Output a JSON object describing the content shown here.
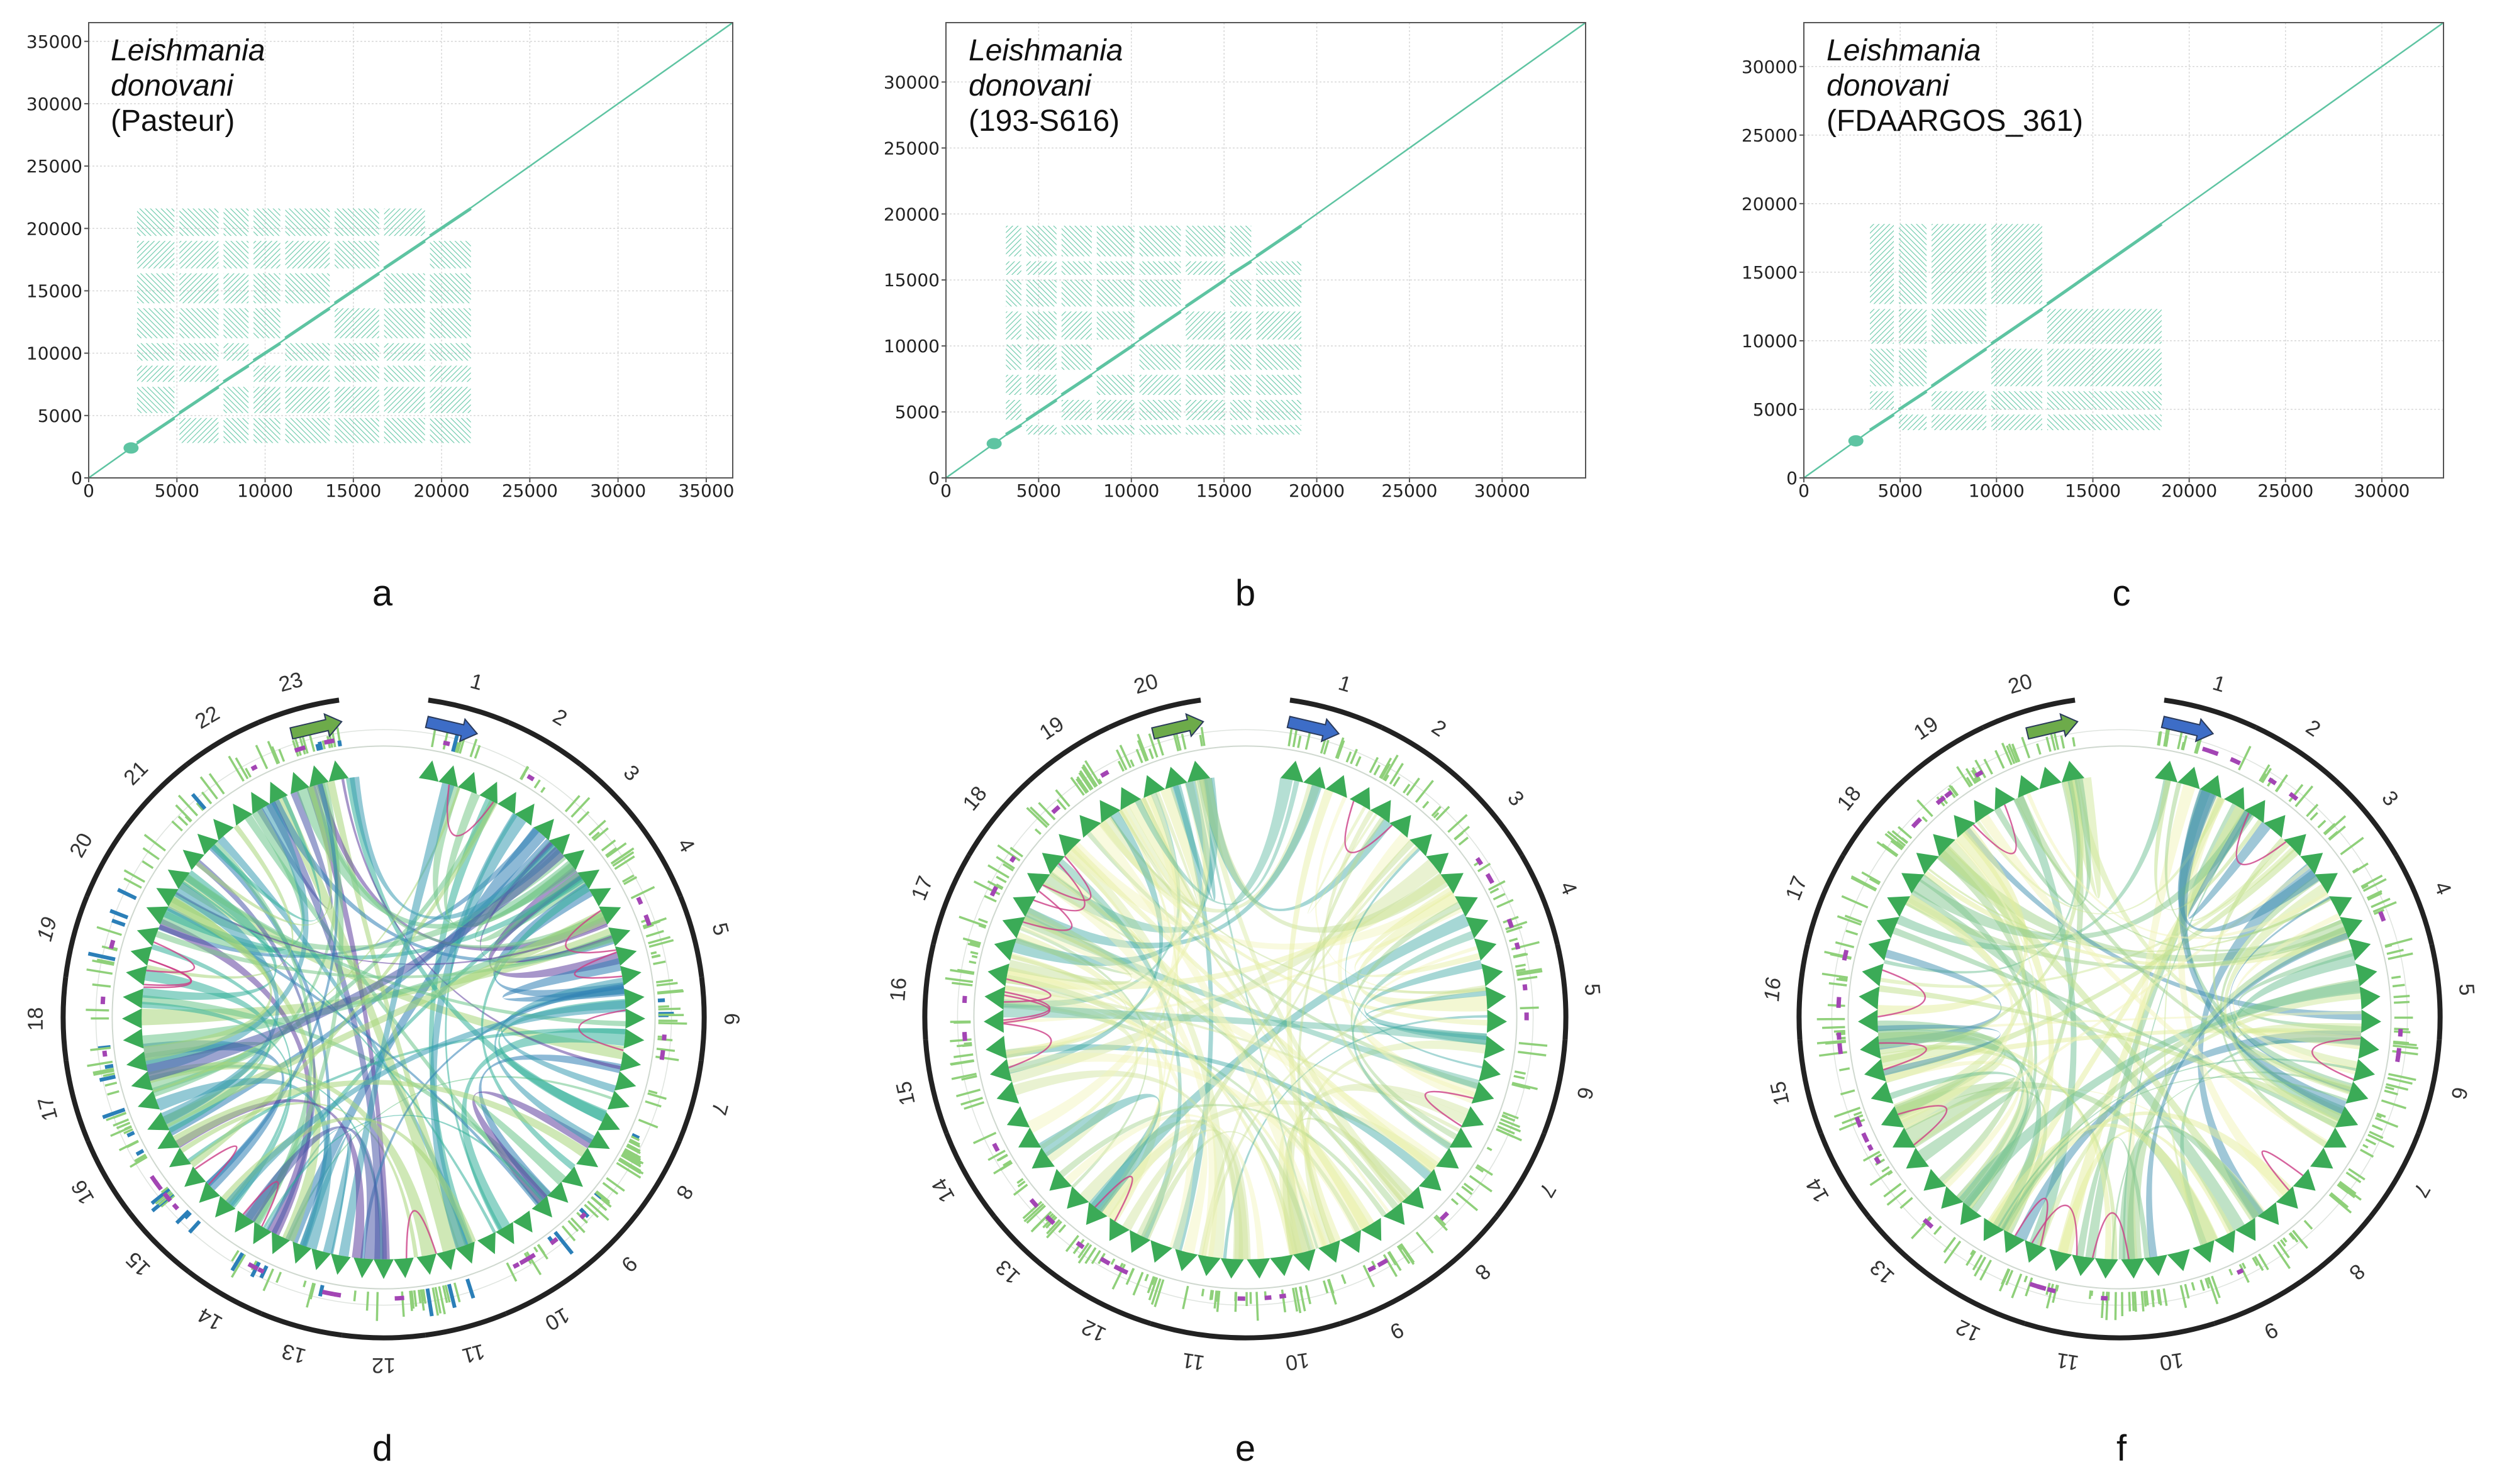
{
  "figure": {
    "panel_labels": [
      "a",
      "b",
      "c",
      "d",
      "e",
      "f"
    ]
  },
  "colors": {
    "dot": "#5ec4a2",
    "grid": "#d8d8d8",
    "axis": "#555555",
    "ring_dark": "#222222",
    "ideogram_green": "#3bab57",
    "bar_green": "#8fd07a",
    "bar_blue": "#2b7fb8",
    "purple": "#a345b4",
    "pink": "#cc3d86",
    "arrow_blue": "#3d6dc7",
    "arrow_green": "#6dab4a"
  },
  "chart_data": [
    {
      "type": "scatter",
      "panel": "a",
      "species_name": "Leishmania",
      "species_name2": "donovani",
      "strain": "(Pasteur)",
      "xlim": [
        0,
        36500
      ],
      "ylim": [
        0,
        36500
      ],
      "xticks": [
        0,
        5000,
        10000,
        15000,
        20000,
        25000,
        30000,
        35000
      ],
      "yticks": [
        0,
        5000,
        10000,
        15000,
        20000,
        25000,
        30000,
        35000
      ],
      "xtick_labels": [
        "0",
        "5000",
        "10000",
        "15000",
        "20000",
        "25000",
        "30000",
        "35000"
      ],
      "ytick_labels": [
        "0",
        "5000",
        "10000",
        "15000",
        "20000",
        "25000",
        "30000",
        "35000"
      ],
      "diagonal": [
        [
          0,
          0
        ],
        [
          36500,
          36500
        ]
      ],
      "block_region": {
        "x": [
          2600,
          21800
        ],
        "y": [
          2600,
          21800
        ]
      },
      "block_breaks": [
        2600,
        5000,
        7500,
        9200,
        11000,
        13800,
        16600,
        19200,
        21800
      ],
      "highlight": {
        "x": 2400,
        "y": 2400
      }
    },
    {
      "type": "scatter",
      "panel": "b",
      "species_name": "Leishmania",
      "species_name2": "donovani",
      "strain": "(193-S616)",
      "xlim": [
        0,
        34500
      ],
      "ylim": [
        0,
        34500
      ],
      "xticks": [
        0,
        5000,
        10000,
        15000,
        20000,
        25000,
        30000
      ],
      "yticks": [
        0,
        5000,
        10000,
        15000,
        20000,
        25000,
        30000
      ],
      "xtick_labels": [
        "0",
        "5000",
        "10000",
        "15000",
        "20000",
        "25000",
        "30000"
      ],
      "ytick_labels": [
        "0",
        "5000",
        "10000",
        "15000",
        "20000",
        "25000",
        "30000"
      ],
      "diagonal": [
        [
          0,
          0
        ],
        [
          34500,
          34500
        ]
      ],
      "block_region": {
        "x": [
          3100,
          19300
        ],
        "y": [
          3100,
          19300
        ]
      },
      "block_breaks": [
        3100,
        4200,
        6100,
        8000,
        10300,
        12800,
        15200,
        16600,
        19300
      ],
      "highlight": {
        "x": 2600,
        "y": 2600
      }
    },
    {
      "type": "scatter",
      "panel": "c",
      "species_name": "Leishmania",
      "species_name2": "donovani",
      "strain": "(FDAARGOS_361)",
      "xlim": [
        0,
        33200
      ],
      "ylim": [
        0,
        33200
      ],
      "xticks": [
        0,
        5000,
        10000,
        15000,
        20000,
        25000,
        30000
      ],
      "yticks": [
        0,
        5000,
        10000,
        15000,
        20000,
        25000,
        30000
      ],
      "xtick_labels": [
        "0",
        "5000",
        "10000",
        "15000",
        "20000",
        "25000",
        "30000"
      ],
      "ytick_labels": [
        "0",
        "5000",
        "10000",
        "15000",
        "20000",
        "25000",
        "30000"
      ],
      "diagonal": [
        [
          0,
          0
        ],
        [
          33200,
          33200
        ]
      ],
      "block_region": {
        "x": [
          3300,
          18700
        ],
        "y": [
          3300,
          18700
        ]
      },
      "block_breaks": [
        3300,
        4800,
        6500,
        9600,
        12500,
        18700
      ],
      "highlight": {
        "x": 2700,
        "y": 2700
      }
    },
    {
      "type": "chord",
      "panel": "d",
      "chromosomes": [
        "1",
        "2",
        "3",
        "4",
        "5",
        "6",
        "7",
        "8",
        "9",
        "10",
        "11",
        "12",
        "13",
        "14",
        "15",
        "16",
        "17",
        "18",
        "19",
        "20",
        "21",
        "22",
        "23"
      ],
      "italic_chromosomes": [
        "19"
      ],
      "link_palette": [
        "#2f7fb4",
        "#3a9cb2",
        "#35b09a",
        "#6cc48a",
        "#4a58a8",
        "#5f3f9e",
        "#7ac98a",
        "#a8d67a"
      ],
      "link_opacity": 0.55,
      "blue_track": true
    },
    {
      "type": "chord",
      "panel": "e",
      "chromosomes": [
        "1",
        "2",
        "3",
        "4",
        "5",
        "6",
        "7",
        "8",
        "9",
        "10",
        "11",
        "12",
        "13",
        "14",
        "15",
        "16",
        "17",
        "18",
        "19",
        "20"
      ],
      "italic_chromosomes": [],
      "link_palette": [
        "#cfe39a",
        "#e5ee9e",
        "#bfdc8e",
        "#f2f4b8",
        "#9fd18a",
        "#d8e9a0",
        "#3aa7a2",
        "#5ab7a0"
      ],
      "link_opacity": 0.45,
      "blue_track": false
    },
    {
      "type": "chord",
      "panel": "f",
      "chromosomes": [
        "1",
        "2",
        "3",
        "4",
        "5",
        "6",
        "7",
        "8",
        "9",
        "10",
        "11",
        "12",
        "13",
        "14",
        "15",
        "16",
        "17",
        "18",
        "19",
        "20"
      ],
      "italic_chromosomes": [
        "16"
      ],
      "link_palette": [
        "#9fd18a",
        "#bfe08a",
        "#e3ee9c",
        "#7fc58e",
        "#cfe79a",
        "#f2f4b8",
        "#3f8fb0",
        "#6dbf94"
      ],
      "link_opacity": 0.5,
      "blue_track": false
    }
  ]
}
